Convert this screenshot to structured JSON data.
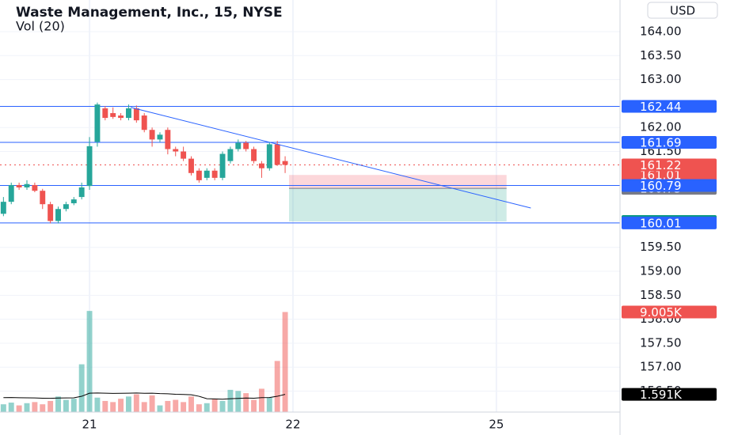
{
  "chart_data": {
    "type": "candlestick",
    "title": "Waste Management, Inc., 15, NYSE",
    "subtitle": "Vol (20)",
    "currency": "USD",
    "up_color": "#26a69a",
    "down_color": "#ef5350",
    "x": [
      -11,
      -10,
      -9,
      -8,
      -7,
      -6,
      -5,
      -4,
      -3,
      -2,
      -1,
      0,
      1,
      2,
      3,
      4,
      5,
      6,
      7,
      8,
      9,
      10,
      11,
      12,
      13,
      14,
      15,
      16,
      17,
      18,
      19,
      20,
      21,
      22,
      23,
      24,
      25
    ],
    "open": [
      160.2,
      160.45,
      160.8,
      160.75,
      160.8,
      160.68,
      160.4,
      160.05,
      160.3,
      160.42,
      160.55,
      160.78,
      161.7,
      162.4,
      162.3,
      162.25,
      162.2,
      162.4,
      162.25,
      161.95,
      161.75,
      161.95,
      161.55,
      161.5,
      161.35,
      161.1,
      160.95,
      161.1,
      160.95,
      161.3,
      161.55,
      161.68,
      161.55,
      161.25,
      161.15,
      161.65,
      161.3
    ],
    "high": [
      160.55,
      160.85,
      160.85,
      160.9,
      160.85,
      160.72,
      160.45,
      160.35,
      160.45,
      160.55,
      160.85,
      161.8,
      162.52,
      162.45,
      162.42,
      162.3,
      162.48,
      162.46,
      162.3,
      162.0,
      161.9,
      162.0,
      161.6,
      161.6,
      161.4,
      161.15,
      161.15,
      161.15,
      161.5,
      161.6,
      161.75,
      161.72,
      161.6,
      161.3,
      161.7,
      161.72,
      161.4
    ],
    "low": [
      160.15,
      160.4,
      160.7,
      160.7,
      160.65,
      160.3,
      160.0,
      160.0,
      160.25,
      160.38,
      160.5,
      160.7,
      161.6,
      162.15,
      162.18,
      162.15,
      162.15,
      162.1,
      161.9,
      161.6,
      161.7,
      161.44,
      161.4,
      161.3,
      161.0,
      160.85,
      160.9,
      160.9,
      160.9,
      161.25,
      161.5,
      161.5,
      161.25,
      160.95,
      161.1,
      161.2,
      161.05
    ],
    "close": [
      160.45,
      160.8,
      160.75,
      160.82,
      160.68,
      160.4,
      160.05,
      160.3,
      160.4,
      160.5,
      160.75,
      161.61,
      162.48,
      162.2,
      162.22,
      162.2,
      162.4,
      162.15,
      161.95,
      161.75,
      161.85,
      161.55,
      161.5,
      161.35,
      161.05,
      160.9,
      161.1,
      160.95,
      161.45,
      161.55,
      161.68,
      161.55,
      161.3,
      161.15,
      161.65,
      161.22,
      161.22
    ],
    "xlim": [
      -11.44,
      67.8
    ],
    "xticks": [
      {
        "value": 0,
        "label": "21"
      },
      {
        "value": 26,
        "label": "22"
      },
      {
        "value": 52,
        "label": "25"
      }
    ],
    "ylim": [
      156.08,
      164.66
    ],
    "yticks": [
      {
        "value": 164,
        "label": "164.00"
      },
      {
        "value": 163.5,
        "label": "163.50"
      },
      {
        "value": 163,
        "label": "163.00"
      },
      {
        "value": 162,
        "label": "162.00"
      },
      {
        "value": 161.5,
        "label": "161.50"
      },
      {
        "value": 159.5,
        "label": "159.50"
      },
      {
        "value": 159,
        "label": "159.00"
      },
      {
        "value": 158.5,
        "label": "158.50"
      },
      {
        "value": 158,
        "label": "158.00"
      },
      {
        "value": 157.5,
        "label": "157.50"
      },
      {
        "value": 157,
        "label": "157.00"
      },
      {
        "value": 156.5,
        "label": "156.50"
      }
    ],
    "grid": true,
    "y2lim": [
      0,
      16300
    ],
    "volume": {
      "axis": "y2",
      "values": [
        700,
        850,
        600,
        800,
        900,
        700,
        1000,
        1400,
        1100,
        1200,
        4300,
        9100,
        1300,
        1000,
        900,
        1200,
        1400,
        1600,
        900,
        1500,
        600,
        1000,
        1100,
        900,
        1400,
        700,
        800,
        1200,
        1000,
        2000,
        1900,
        1700,
        1100,
        2100,
        1300,
        4600,
        9005
      ],
      "value_labels": [
        null,
        null,
        null,
        null,
        null,
        null,
        null,
        null,
        null,
        null,
        null,
        null,
        null,
        null,
        null,
        null,
        null,
        null,
        null,
        null,
        null,
        null,
        null,
        null,
        null,
        null,
        null,
        null,
        null,
        null,
        null,
        null,
        null,
        null,
        null,
        null,
        "9.005K"
      ]
    },
    "volume_ma": {
      "axis": "y2",
      "color": "#000000",
      "values": [
        1300,
        1310,
        1290,
        1280,
        1270,
        1250,
        1240,
        1260,
        1270,
        1280,
        1420,
        1700,
        1720,
        1700,
        1680,
        1690,
        1700,
        1720,
        1690,
        1700,
        1660,
        1650,
        1600,
        1580,
        1560,
        1420,
        1200,
        1180,
        1160,
        1200,
        1230,
        1260,
        1250,
        1300,
        1310,
        1420,
        1591
      ],
      "value_labels": [
        null,
        null,
        null,
        null,
        null,
        null,
        null,
        null,
        null,
        null,
        null,
        null,
        null,
        null,
        null,
        null,
        null,
        null,
        null,
        null,
        null,
        null,
        null,
        null,
        null,
        null,
        null,
        null,
        null,
        null,
        null,
        null,
        null,
        null,
        null,
        null,
        "1.591K"
      ]
    },
    "hline_color": "#2962ff",
    "hlines": [
      162.44,
      161.69,
      160.79,
      160.01
    ],
    "last_price": 161.22,
    "position": {
      "stop": 161.01,
      "entry": 160.73,
      "target": 160.04,
      "x": [
        25.5,
        53.3
      ]
    },
    "trendline": {
      "color": "#2962ff",
      "x": [
        5.26,
        56.4
      ],
      "y": [
        162.42,
        160.32
      ]
    }
  }
}
